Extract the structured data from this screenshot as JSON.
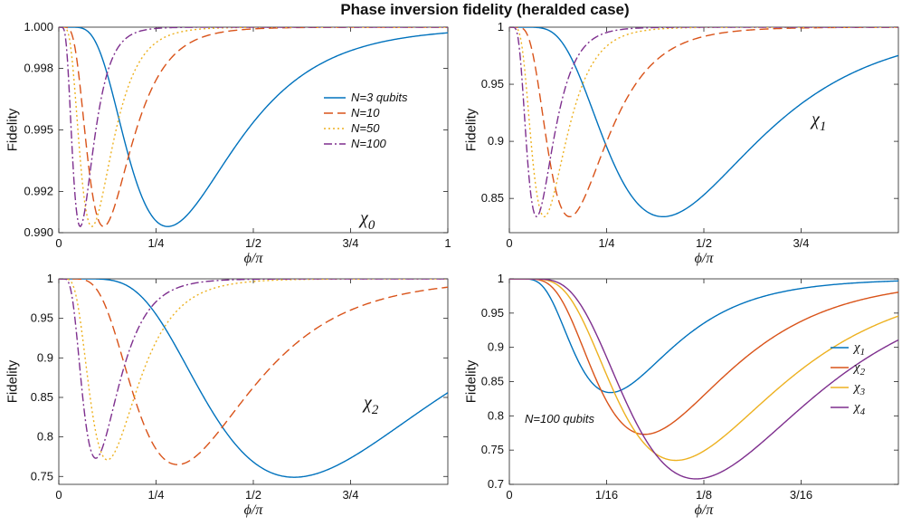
{
  "figure": {
    "title": "Phase inversion fidelity (heralded case)"
  },
  "chart_data": [
    {
      "type": "line",
      "panel": "top-left",
      "xlabel": "ϕ/π",
      "ylabel": "Fidelity",
      "xlim": [
        0,
        1
      ],
      "ylim": [
        0.99,
        1.0
      ],
      "xticks": [
        0,
        0.25,
        0.5,
        0.75,
        1
      ],
      "xticklabels": [
        "0",
        "1/4",
        "1/2",
        "3/4",
        "1"
      ],
      "yticks": [
        0.99,
        0.992,
        0.995,
        0.998,
        1.0
      ],
      "yticklabels": [
        "0.990",
        "0.992",
        "0.995",
        "0.998",
        "1.000"
      ],
      "annotation": "χ",
      "annotation_sub": "0",
      "legend_placement": "center-right",
      "series": [
        {
          "name": "N=3 qubits",
          "color": "#0072BD",
          "dash": "solid",
          "min_x": 0.28,
          "min_y": 0.9903
        },
        {
          "name": "N=10",
          "color": "#D95319",
          "dash": "dashed",
          "min_x": 0.115,
          "min_y": 0.9903
        },
        {
          "name": "N=50",
          "color": "#EDB120",
          "dash": "dotted",
          "min_x": 0.085,
          "min_y": 0.9903
        },
        {
          "name": "N=100",
          "color": "#7E2F8E",
          "dash": "dashdot",
          "min_x": 0.055,
          "min_y": 0.9903
        }
      ]
    },
    {
      "type": "line",
      "panel": "top-right",
      "xlabel": "ϕ/π",
      "ylabel": "Fidelity",
      "xlim": [
        0,
        1
      ],
      "ylim": [
        0.82,
        1.0
      ],
      "xticks": [
        0,
        0.25,
        0.5,
        0.75
      ],
      "xticklabels": [
        "0",
        "1/4",
        "1/2",
        "3/4"
      ],
      "yticks": [
        0.85,
        0.9,
        0.95,
        1
      ],
      "yticklabels": [
        "0.85",
        "0.9",
        "0.95",
        "1"
      ],
      "annotation": "χ",
      "annotation_sub": "1",
      "series": [
        {
          "name": "N=3 qubits",
          "color": "#0072BD",
          "dash": "solid",
          "min_x": 0.395,
          "min_y": 0.834
        },
        {
          "name": "N=10",
          "color": "#D95319",
          "dash": "dashed",
          "min_x": 0.155,
          "min_y": 0.834
        },
        {
          "name": "N=50",
          "color": "#EDB120",
          "dash": "dotted",
          "min_x": 0.09,
          "min_y": 0.834
        },
        {
          "name": "N=100",
          "color": "#7E2F8E",
          "dash": "dashdot",
          "min_x": 0.07,
          "min_y": 0.834
        }
      ]
    },
    {
      "type": "line",
      "panel": "bottom-left",
      "xlabel": "ϕ/π",
      "ylabel": "Fidelity",
      "xlim": [
        0,
        1
      ],
      "ylim": [
        0.74,
        1.0
      ],
      "xticks": [
        0,
        0.25,
        0.5,
        0.75
      ],
      "xticklabels": [
        "0",
        "1/4",
        "1/2",
        "3/4"
      ],
      "yticks": [
        0.75,
        0.8,
        0.85,
        0.9,
        0.95,
        1
      ],
      "yticklabels": [
        "0.75",
        "0.8",
        "0.85",
        "0.9",
        "0.95",
        "1"
      ],
      "annotation": "χ",
      "annotation_sub": "2",
      "series": [
        {
          "name": "N=3 qubits",
          "color": "#0072BD",
          "dash": "solid",
          "min_x": 0.605,
          "min_y": 0.749
        },
        {
          "name": "N=10",
          "color": "#D95319",
          "dash": "dashed",
          "min_x": 0.305,
          "min_y": 0.765
        },
        {
          "name": "N=50",
          "color": "#EDB120",
          "dash": "dotted",
          "min_x": 0.125,
          "min_y": 0.771
        },
        {
          "name": "N=100",
          "color": "#7E2F8E",
          "dash": "dashdot",
          "min_x": 0.095,
          "min_y": 0.773
        }
      ]
    },
    {
      "type": "line",
      "panel": "bottom-right",
      "xlabel": "ϕ/π",
      "ylabel": "Fidelity",
      "xlim": [
        0,
        0.25
      ],
      "ylim": [
        0.7,
        1.0
      ],
      "xticks": [
        0,
        0.0625,
        0.125,
        0.1875
      ],
      "xticklabels": [
        "0",
        "1/16",
        "1/8",
        "3/16"
      ],
      "yticks": [
        0.7,
        0.75,
        0.8,
        0.85,
        0.9,
        0.95,
        1
      ],
      "yticklabels": [
        "0.7",
        "0.75",
        "0.8",
        "0.85",
        "0.9",
        "0.95",
        "1"
      ],
      "annotation_text": "N=100 qubits",
      "legend_placement": "right",
      "series": [
        {
          "name": "χ",
          "sub": "1",
          "color": "#0072BD",
          "dash": "solid",
          "min_x": 0.065,
          "min_y": 0.834
        },
        {
          "name": "χ",
          "sub": "2",
          "color": "#D95319",
          "dash": "solid",
          "min_x": 0.087,
          "min_y": 0.773
        },
        {
          "name": "χ",
          "sub": "3",
          "color": "#EDB120",
          "dash": "solid",
          "min_x": 0.107,
          "min_y": 0.735
        },
        {
          "name": "χ",
          "sub": "4",
          "color": "#7E2F8E",
          "dash": "solid",
          "min_x": 0.12,
          "min_y": 0.708
        }
      ]
    }
  ]
}
